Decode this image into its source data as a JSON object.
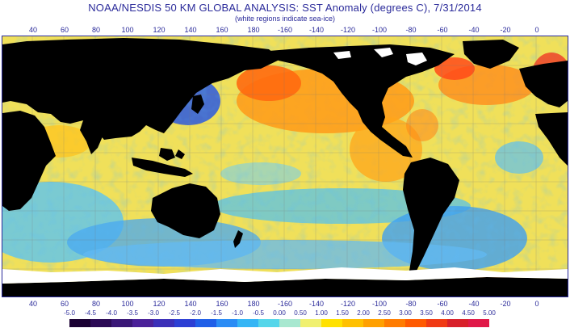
{
  "title": "NOAA/NESDIS 50 KM GLOBAL ANALYSIS: SST Anomaly (degrees C), 7/31/2014",
  "subtitle": "(white regions indicate sea-ice)",
  "longitude_labels": [
    "40",
    "60",
    "80",
    "100",
    "120",
    "140",
    "160",
    "180",
    "-160",
    "-140",
    "-120",
    "-100",
    "-80",
    "-60",
    "-40",
    "-20",
    "0"
  ],
  "colorbar": {
    "labels": [
      "-5.0",
      "-4.5",
      "-4.0",
      "-3.5",
      "-3.0",
      "-2.5",
      "-2.0",
      "-1.5",
      "-1.0",
      "-0.5",
      "0.00",
      "0.50",
      "1.00",
      "1.50",
      "2.00",
      "2.50",
      "3.00",
      "3.50",
      "4.00",
      "4.50",
      "5.00"
    ],
    "colors": [
      "#1a0033",
      "#2b0a55",
      "#3a1777",
      "#4b2199",
      "#3b2fb8",
      "#2c3fd4",
      "#1f5fe8",
      "#2a8cf5",
      "#35b5f5",
      "#55d6ea",
      "#a8e8d0",
      "#f0f070",
      "#ffe100",
      "#ffc000",
      "#ffa000",
      "#ff7c00",
      "#ff5a00",
      "#f03a14",
      "#d8202a",
      "#e01848"
    ]
  },
  "map": {
    "land_color": "#000000",
    "sea_ice_color": "#ffffff",
    "ocean_base_color": "#f0e05a"
  }
}
